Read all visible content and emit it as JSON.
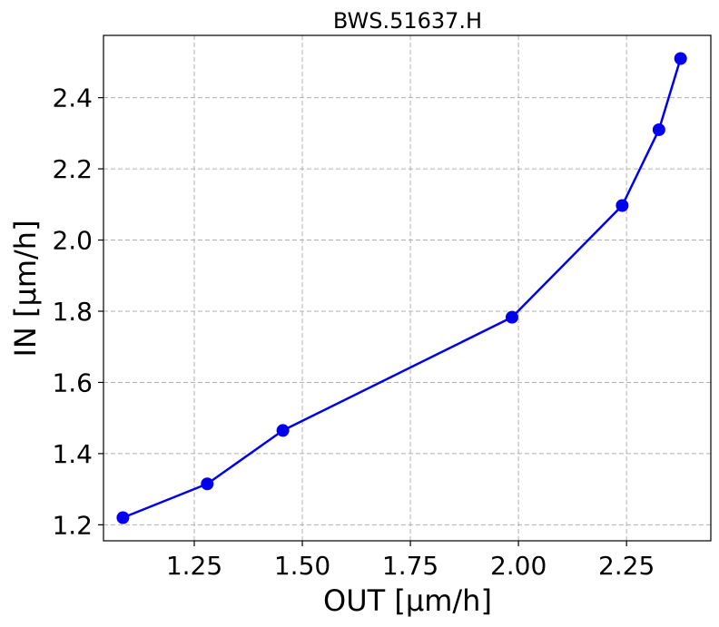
{
  "chart_data": {
    "type": "line",
    "title": "BWS.51637.H",
    "xlabel": "OUT [µm/h]",
    "ylabel": "IN [µm/h]",
    "xlim": [
      1.04,
      2.445
    ],
    "ylim": [
      1.155,
      2.575
    ],
    "xticks": [
      1.25,
      1.5,
      1.75,
      2.0,
      2.25
    ],
    "xtick_labels": [
      "1.25",
      "1.50",
      "1.75",
      "2.00",
      "2.25"
    ],
    "yticks": [
      1.2,
      1.4,
      1.6,
      1.8,
      2.0,
      2.2,
      2.4
    ],
    "ytick_labels": [
      "1.2",
      "1.4",
      "1.6",
      "1.8",
      "2.0",
      "2.2",
      "2.4"
    ],
    "grid": true,
    "series": [
      {
        "color": "#0000ee",
        "marker": "circle",
        "x": [
          1.085,
          1.28,
          1.455,
          1.985,
          2.24,
          2.325,
          2.375
        ],
        "y": [
          1.22,
          1.315,
          1.465,
          1.783,
          2.097,
          2.31,
          2.51
        ]
      }
    ]
  }
}
